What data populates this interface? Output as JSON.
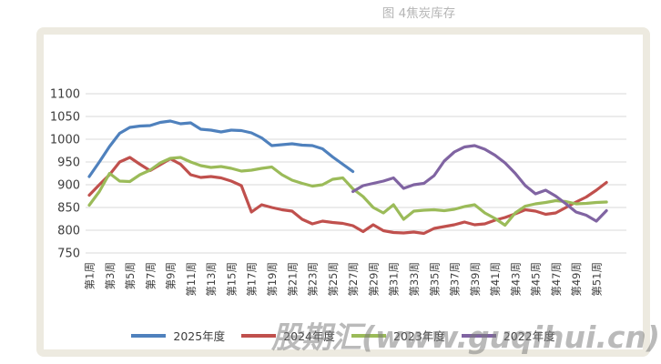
{
  "title": "图 4焦炭库存",
  "watermark": "股期汇(www.guqihui.cn)",
  "colors": {
    "series_2025": "#4f81bd",
    "series_2024": "#c0504d",
    "series_2023": "#9bbb59",
    "series_2022": "#8064a2",
    "gridline": "#d9d9d9",
    "axis_text": "#3d3d3d",
    "frame_border": "#edeae0",
    "title_text": "#b5b5b5"
  },
  "legend": [
    {
      "label": "2025年度",
      "color": "#4f81bd"
    },
    {
      "label": "2024年度",
      "color": "#c0504d"
    },
    {
      "label": "2023年度",
      "color": "#9bbb59"
    },
    {
      "label": "2022年度",
      "color": "#8064a2"
    }
  ],
  "chart_data": {
    "type": "line",
    "title": "图 4焦炭库存",
    "xlabel": "",
    "ylabel": "",
    "ylim": [
      750,
      1100
    ],
    "y_ticks": [
      1100,
      1050,
      1000,
      950,
      900,
      850,
      800,
      750
    ],
    "grid": true,
    "legend_position": "bottom",
    "x_unit": "week",
    "x_weeks": 52,
    "x_tick_labels": [
      "第1周",
      "第3周",
      "第5周",
      "第7周",
      "第9周",
      "第11周",
      "第13周",
      "第15周",
      "第17周",
      "第19周",
      "第21周",
      "第23周",
      "第25周",
      "第27周",
      "第29周",
      "第31周",
      "第33周",
      "第35周",
      "第37周",
      "第39周",
      "第41周",
      "第43周",
      "第45周",
      "第47周",
      "第49周",
      "第51周"
    ],
    "series": [
      {
        "name": "2025年度",
        "color": "#4f81bd",
        "start_week": 1,
        "values": [
          918,
          950,
          984,
          1013,
          1026,
          1029,
          1030,
          1037,
          1040,
          1034,
          1036,
          1022,
          1020,
          1016,
          1020,
          1019,
          1014,
          1003,
          986,
          988,
          990,
          987,
          986,
          979,
          961,
          945,
          929
        ]
      },
      {
        "name": "2024年度",
        "color": "#c0504d",
        "start_week": 1,
        "values": [
          877,
          900,
          922,
          950,
          960,
          945,
          931,
          944,
          957,
          945,
          922,
          916,
          918,
          915,
          908,
          898,
          840,
          856,
          850,
          845,
          842,
          824,
          814,
          820,
          817,
          815,
          810,
          797,
          812,
          799,
          795,
          794,
          796,
          793,
          804,
          808,
          812,
          818,
          812,
          814,
          822,
          828,
          836,
          845,
          842,
          835,
          838,
          850,
          862,
          873,
          888,
          905
        ]
      },
      {
        "name": "2023年度",
        "color": "#9bbb59",
        "start_week": 1,
        "values": [
          855,
          885,
          925,
          908,
          907,
          922,
          932,
          948,
          958,
          960,
          950,
          942,
          938,
          940,
          936,
          930,
          932,
          936,
          939,
          922,
          910,
          903,
          897,
          900,
          912,
          915,
          891,
          874,
          850,
          838,
          856,
          824,
          842,
          844,
          845,
          843,
          846,
          852,
          856,
          838,
          826,
          811,
          838,
          853,
          858,
          861,
          865,
          863,
          858,
          859,
          861,
          862
        ]
      },
      {
        "name": "2022年度",
        "color": "#8064a2",
        "start_week": 27,
        "values": [
          885,
          898,
          903,
          908,
          915,
          892,
          900,
          903,
          920,
          952,
          972,
          983,
          986,
          978,
          965,
          948,
          925,
          898,
          880,
          888,
          875,
          858,
          840,
          833,
          820,
          843
        ]
      }
    ]
  }
}
